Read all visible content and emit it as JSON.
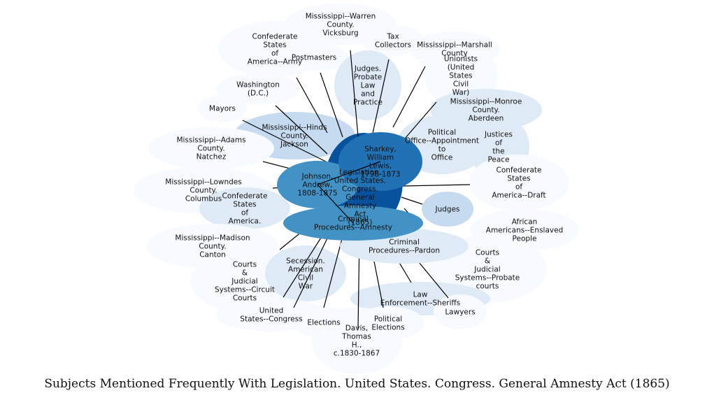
{
  "title": "Subjects Mentioned Frequently With Legislation. United States. Congress. General Amnesty Act (1865)",
  "palette": {
    "very_light": "#f7fbff",
    "light": "#deebf7",
    "pale": "#c6dbef",
    "mid": "#4292c6",
    "strong": "#2171b5",
    "dark": "#08519c"
  },
  "center": {
    "id": "center",
    "label": [
      "Legislation.",
      "United States.",
      "Congress.",
      "General",
      "Amnesty",
      "Act",
      "(1865)"
    ]
  },
  "nodes": [
    {
      "id": "confederate-states",
      "label": [
        "Confederate",
        "States",
        "of",
        "America--Army"
      ],
      "shade": "very_light"
    },
    {
      "id": "mississippi-warren",
      "label": [
        "Mississippi--Warren",
        "County.",
        "Vicksburg"
      ],
      "shade": "very_light"
    },
    {
      "id": "tax-collectors",
      "label": [
        "Tax",
        "Collectors"
      ],
      "shade": "very_light"
    },
    {
      "id": "mississippi-m-county",
      "label": [
        "Mississippi--Marshall",
        "County"
      ],
      "shade": "very_light"
    },
    {
      "id": "postmasters",
      "label": [
        "Postmasters"
      ],
      "shade": "very_light"
    },
    {
      "id": "unionists",
      "label": [
        "Unionists",
        "(United",
        "States",
        "Civil",
        "War)"
      ],
      "shade": "very_light"
    },
    {
      "id": "judges-probate",
      "label": [
        "Judges.",
        "Probate",
        "Law",
        "and",
        "Practice"
      ],
      "shade": "light"
    },
    {
      "id": "washington-dc",
      "label": [
        "Washington",
        "(D.C.)"
      ],
      "shade": "very_light"
    },
    {
      "id": "mississippi-monroe",
      "label": [
        "Mississippi--Monroe",
        "County.",
        "Aberdeen"
      ],
      "shade": "light"
    },
    {
      "id": "mayors",
      "label": [
        "Mayors"
      ],
      "shade": "very_light"
    },
    {
      "id": "mississippi-hinds",
      "label": [
        "Mississippi--Hinds",
        "County.",
        "Jackson"
      ],
      "shade": "pale"
    },
    {
      "id": "political-office",
      "label": [
        "Political",
        "Office--Appointment",
        "to",
        "Office"
      ],
      "shade": "light"
    },
    {
      "id": "justices-of-peace",
      "label": [
        "Justices",
        "of",
        "the",
        "Peace"
      ],
      "shade": "light"
    },
    {
      "id": "mississippi-adams",
      "label": [
        "Mississippi--Adams",
        "County.",
        "Natchez"
      ],
      "shade": "very_light"
    },
    {
      "id": "sharkey",
      "label": [
        "Sharkey,",
        "William",
        "Lewis,",
        "1798-1873"
      ],
      "shade": "strong"
    },
    {
      "id": "confederate-draft",
      "label": [
        "Confederate",
        "States",
        "of",
        "America--Draft"
      ],
      "shade": "very_light"
    },
    {
      "id": "johnson",
      "label": [
        "Johnson,",
        "Andrew,",
        "1808-1875"
      ],
      "shade": "mid"
    },
    {
      "id": "mississippi-lowndes",
      "label": [
        "Mississippi--Lowndes",
        "County.",
        "Columbus"
      ],
      "shade": "very_light"
    },
    {
      "id": "judges",
      "label": [
        "Judges"
      ],
      "shade": "pale"
    },
    {
      "id": "confederate-states-america",
      "label": [
        "Confederate",
        "States",
        "of",
        "America."
      ],
      "shade": "light"
    },
    {
      "id": "criminal-amnesty",
      "label": [
        "Criminal",
        "Procedures--Amnesty"
      ],
      "shade": "mid"
    },
    {
      "id": "african-americans",
      "label": [
        "African",
        "Americans--Enslaved",
        "People"
      ],
      "shade": "very_light"
    },
    {
      "id": "mississippi-madison",
      "label": [
        "Mississippi--Madison",
        "County.",
        "Canton"
      ],
      "shade": "very_light"
    },
    {
      "id": "criminal-pardon",
      "label": [
        "Criminal",
        "Procedures--Pardon"
      ],
      "shade": "light"
    },
    {
      "id": "courts-probate",
      "label": [
        "Courts",
        "&",
        "Judicial",
        "Systems--Probate",
        "courts"
      ],
      "shade": "very_light"
    },
    {
      "id": "courts-circuit",
      "label": [
        "Courts",
        "&",
        "Judicial",
        "Systems--Circuit",
        "Courts"
      ],
      "shade": "very_light"
    },
    {
      "id": "secession",
      "label": [
        "Secession.",
        "American",
        "Civil",
        "War"
      ],
      "shade": "light"
    },
    {
      "id": "law-enforcement",
      "label": [
        "Law",
        "Enforcement--Sheriffs"
      ],
      "shade": "light"
    },
    {
      "id": "lawyers",
      "label": [
        "Lawyers"
      ],
      "shade": "very_light"
    },
    {
      "id": "us-congress",
      "label": [
        "United",
        "States--Congress"
      ],
      "shade": "very_light"
    },
    {
      "id": "elections",
      "label": [
        "Elections"
      ],
      "shade": "very_light"
    },
    {
      "id": "political-elections",
      "label": [
        "Political",
        "Elections"
      ],
      "shade": "very_light"
    },
    {
      "id": "davis",
      "label": [
        "Davis,",
        "Thomas",
        "H.,",
        "c.1830-1867"
      ],
      "shade": "very_light"
    }
  ]
}
